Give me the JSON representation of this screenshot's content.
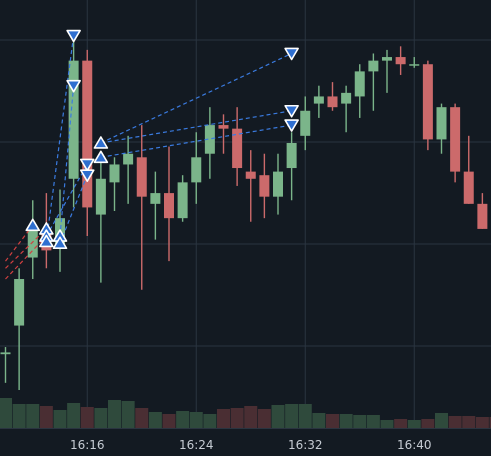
{
  "theme": {
    "background": "#131a22",
    "grid": "#2a3440",
    "up": "#7bb58a",
    "down": "#cc6a6b",
    "volume_up": "#2f4a3c",
    "volume_down": "#4a2e33",
    "marker_fill": "#2f6fd0",
    "trade_line_blue": "#3a7be0",
    "trade_line_red": "#d04040",
    "axis_text": "#c6ccd4"
  },
  "chart_data": {
    "type": "candlestick",
    "interval": "1m",
    "x_tick_labels": [
      "16:16",
      "16:24",
      "16:32",
      "16:40"
    ],
    "x_tick_times": [
      "16:16",
      "16:24",
      "16:32",
      "16:40"
    ],
    "y_range": [
      0,
      100
    ],
    "y_axis_labels_visible": false,
    "grid": true,
    "candles": [
      {
        "t": "16:10",
        "o": 10,
        "h": 12,
        "l": 2,
        "c": 10.5
      },
      {
        "t": "16:11",
        "o": 18,
        "h": 34,
        "l": 0,
        "c": 31
      },
      {
        "t": "16:12",
        "o": 37,
        "h": 53,
        "l": 31,
        "c": 45
      },
      {
        "t": "16:13",
        "o": 44,
        "h": 55,
        "l": 34,
        "c": 39
      },
      {
        "t": "16:14",
        "o": 40,
        "h": 56,
        "l": 33,
        "c": 48
      },
      {
        "t": "16:15",
        "o": 59,
        "h": 99,
        "l": 51,
        "c": 92
      },
      {
        "t": "16:16",
        "o": 92,
        "h": 95,
        "l": 43,
        "c": 51
      },
      {
        "t": "16:17",
        "o": 49,
        "h": 66,
        "l": 30,
        "c": 59
      },
      {
        "t": "16:18",
        "o": 58,
        "h": 65,
        "l": 50,
        "c": 63
      },
      {
        "t": "16:19",
        "o": 63,
        "h": 71,
        "l": 52,
        "c": 66
      },
      {
        "t": "16:20",
        "o": 65,
        "h": 74,
        "l": 28,
        "c": 54
      },
      {
        "t": "16:21",
        "o": 52,
        "h": 61,
        "l": 42,
        "c": 55
      },
      {
        "t": "16:22",
        "o": 55,
        "h": 68,
        "l": 36,
        "c": 48
      },
      {
        "t": "16:23",
        "o": 48,
        "h": 60,
        "l": 47,
        "c": 58
      },
      {
        "t": "16:24",
        "o": 58,
        "h": 72,
        "l": 52,
        "c": 65
      },
      {
        "t": "16:25",
        "o": 66,
        "h": 79,
        "l": 59,
        "c": 74
      },
      {
        "t": "16:26",
        "o": 74,
        "h": 77,
        "l": 66,
        "c": 73
      },
      {
        "t": "16:27",
        "o": 73,
        "h": 79,
        "l": 57,
        "c": 62
      },
      {
        "t": "16:28",
        "o": 61,
        "h": 67,
        "l": 47,
        "c": 59
      },
      {
        "t": "16:29",
        "o": 60,
        "h": 66,
        "l": 48,
        "c": 54
      },
      {
        "t": "16:30",
        "o": 54,
        "h": 66,
        "l": 49,
        "c": 61
      },
      {
        "t": "16:31",
        "o": 62,
        "h": 72,
        "l": 53,
        "c": 69
      },
      {
        "t": "16:32",
        "o": 71,
        "h": 82,
        "l": 67,
        "c": 78
      },
      {
        "t": "16:33",
        "o": 80,
        "h": 85,
        "l": 76,
        "c": 82
      },
      {
        "t": "16:34",
        "o": 82,
        "h": 86,
        "l": 78,
        "c": 79
      },
      {
        "t": "16:35",
        "o": 80,
        "h": 85,
        "l": 72,
        "c": 83
      },
      {
        "t": "16:36",
        "o": 82,
        "h": 91,
        "l": 76,
        "c": 89
      },
      {
        "t": "16:37",
        "o": 89,
        "h": 94,
        "l": 78,
        "c": 92
      },
      {
        "t": "16:38",
        "o": 92,
        "h": 95,
        "l": 83,
        "c": 93
      },
      {
        "t": "16:39",
        "o": 93,
        "h": 96,
        "l": 88,
        "c": 91
      },
      {
        "t": "16:40",
        "o": 91,
        "h": 93,
        "l": 90,
        "c": 91
      },
      {
        "t": "16:41",
        "o": 91,
        "h": 92,
        "l": 67,
        "c": 70
      },
      {
        "t": "16:42",
        "o": 70,
        "h": 80,
        "l": 66,
        "c": 79
      },
      {
        "t": "16:43",
        "o": 79,
        "h": 80,
        "l": 58,
        "c": 61
      },
      {
        "t": "16:44",
        "o": 61,
        "h": 71,
        "l": 52,
        "c": 52
      },
      {
        "t": "16:45",
        "o": 52,
        "h": 55,
        "l": 45,
        "c": 45
      },
      {
        "t": "16:46",
        "o": 45,
        "h": 45,
        "l": 32,
        "c": 39
      },
      {
        "t": "16:47",
        "o": 39,
        "h": 39,
        "l": 18,
        "c": 30
      },
      {
        "t": "16:48",
        "o": 31,
        "h": 57,
        "l": 29,
        "c": 56
      }
    ],
    "volume": [
      30,
      24,
      24,
      22,
      18,
      25,
      21,
      20,
      28,
      27,
      20,
      16,
      14,
      17,
      16,
      14,
      19,
      20,
      22,
      19,
      23,
      24,
      24,
      15,
      14,
      14,
      13,
      13,
      8,
      9,
      8,
      9,
      15,
      12,
      12,
      11,
      11,
      10,
      10
    ],
    "markers": [
      {
        "t": "16:12",
        "y": 46,
        "kind": "buy"
      },
      {
        "t": "16:13",
        "y": 45,
        "kind": "buy"
      },
      {
        "t": "16:13",
        "y": 43,
        "kind": "buy"
      },
      {
        "t": "16:13",
        "y": 41.5,
        "kind": "buy"
      },
      {
        "t": "16:14",
        "y": 43,
        "kind": "buy"
      },
      {
        "t": "16:14",
        "y": 41,
        "kind": "buy"
      },
      {
        "t": "16:15",
        "y": 99,
        "kind": "sell"
      },
      {
        "t": "16:15",
        "y": 85,
        "kind": "sell"
      },
      {
        "t": "16:16",
        "y": 63,
        "kind": "sell"
      },
      {
        "t": "16:16",
        "y": 60,
        "kind": "sell"
      },
      {
        "t": "16:17",
        "y": 69,
        "kind": "buy"
      },
      {
        "t": "16:17",
        "y": 65,
        "kind": "buy"
      },
      {
        "t": "16:31",
        "y": 94,
        "kind": "sell"
      },
      {
        "t": "16:31",
        "y": 78,
        "kind": "sell"
      },
      {
        "t": "16:31",
        "y": 74,
        "kind": "sell"
      }
    ],
    "trades": [
      {
        "from_t": "16:10",
        "from_y": 36,
        "to_t": "16:12",
        "to_y": 46,
        "color": "red"
      },
      {
        "from_t": "16:10",
        "from_y": 34,
        "to_t": "16:13",
        "to_y": 45,
        "color": "red"
      },
      {
        "from_t": "16:10",
        "from_y": 31,
        "to_t": "16:13",
        "to_y": 43,
        "color": "red"
      },
      {
        "from_t": "16:13",
        "from_y": 41.5,
        "to_t": "16:15",
        "to_y": 99,
        "color": "blue"
      },
      {
        "from_t": "16:14",
        "from_y": 43,
        "to_t": "16:15",
        "to_y": 85,
        "color": "blue"
      },
      {
        "from_t": "16:14",
        "from_y": 41,
        "to_t": "16:16",
        "to_y": 60,
        "color": "blue"
      },
      {
        "from_t": "16:13",
        "from_y": 43,
        "to_t": "16:16",
        "to_y": 63,
        "color": "blue"
      },
      {
        "from_t": "16:17",
        "from_y": 69,
        "to_t": "16:31",
        "to_y": 94,
        "color": "blue"
      },
      {
        "from_t": "16:17",
        "from_y": 69,
        "to_t": "16:31",
        "to_y": 78,
        "color": "blue"
      },
      {
        "from_t": "16:17",
        "from_y": 65,
        "to_t": "16:31",
        "to_y": 74,
        "color": "blue"
      }
    ]
  }
}
